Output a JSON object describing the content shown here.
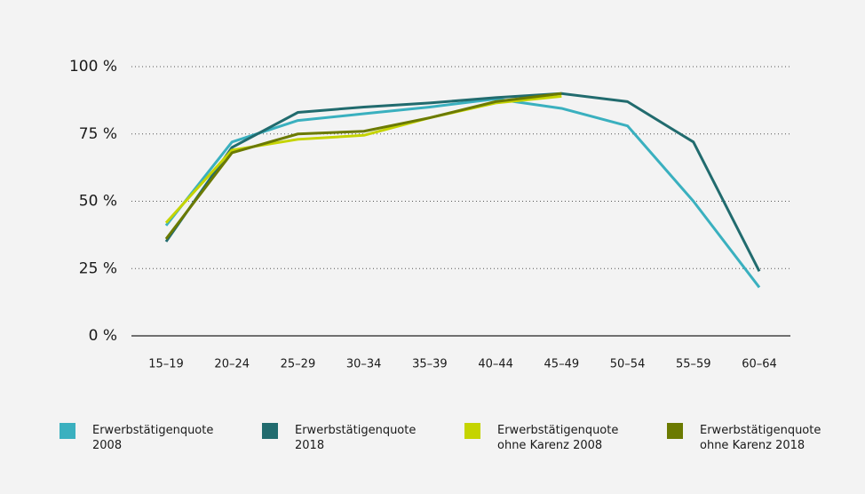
{
  "chart_data": {
    "type": "line",
    "categories": [
      "15–19",
      "20–24",
      "25–29",
      "30–34",
      "35–39",
      "40–44",
      "45–49",
      "50–54",
      "55–59",
      "60–64"
    ],
    "series": [
      {
        "name": "Erwerbstätigenquote 2008",
        "color": "#3ab0bf",
        "values": [
          41,
          72,
          80,
          82.5,
          85,
          88,
          84.5,
          78,
          50,
          18
        ]
      },
      {
        "name": "Erwerbstätigenquote 2018",
        "color": "#216b6e",
        "values": [
          35,
          70,
          83,
          85,
          86.5,
          88.5,
          90,
          87,
          72,
          24
        ]
      },
      {
        "name": "Erwerbstätigenquote ohne Karenz 2008",
        "color": "#c5d400",
        "values": [
          42,
          69,
          73,
          74.5,
          81,
          86.5,
          89,
          null,
          null,
          null
        ]
      },
      {
        "name": "Erwerbstätigenquote ohne Karenz 2018",
        "color": "#6b7a00",
        "values": [
          36,
          68,
          75,
          76,
          81,
          87,
          90,
          null,
          null,
          null
        ]
      }
    ],
    "ylim": [
      0,
      100
    ],
    "yticks": [
      {
        "value": 0,
        "label": "0 %"
      },
      {
        "value": 25,
        "label": "25 %"
      },
      {
        "value": 50,
        "label": "50 %"
      },
      {
        "value": 75,
        "label": "75 %"
      },
      {
        "value": 100,
        "label": "100 %"
      }
    ],
    "grid": true,
    "legend": "bottom"
  }
}
